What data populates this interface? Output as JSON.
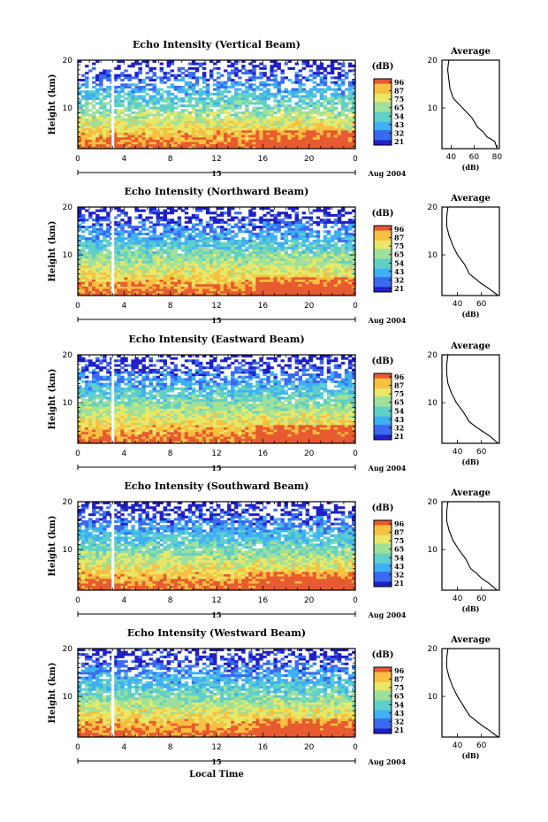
{
  "figure": {
    "xlabel": "Local Time",
    "date_label": "Aug 2004",
    "day_label": "15",
    "colorbar_unit": "(dB)",
    "colorbar_ticks": [
      "96",
      "87",
      "75",
      "65",
      "54",
      "43",
      "32",
      "21"
    ],
    "colors": [
      "#2020c8",
      "#3a6af0",
      "#3fb0f5",
      "#5fd0c8",
      "#9fe09a",
      "#e8e868",
      "#f7c040",
      "#e85a30"
    ]
  },
  "chart_data": [
    {
      "type": "heatmap",
      "title": "Echo Intensity (Vertical Beam)",
      "ylabel": "Height (km)",
      "x_ticks": [
        "0",
        "4",
        "8",
        "12",
        "16",
        "20",
        "0"
      ],
      "y_ticks": [
        "20",
        "10"
      ],
      "xlim": [
        0,
        24
      ],
      "ylim": [
        1.5,
        20
      ],
      "profile": {
        "title": "Average",
        "xlabel": "(dB)",
        "x_ticks": [
          "40",
          "60",
          "80"
        ],
        "xlim": [
          32,
          82
        ],
        "heights": [
          1.5,
          3,
          4,
          5,
          6,
          8,
          10,
          12,
          14,
          16,
          18,
          20
        ],
        "values": [
          80,
          78,
          71,
          68,
          63,
          58,
          50,
          42,
          39,
          38,
          37,
          38
        ]
      }
    },
    {
      "type": "heatmap",
      "title": "Echo Intensity (Northward Beam)",
      "ylabel": "Height (km)",
      "x_ticks": [
        "0",
        "4",
        "8",
        "12",
        "16",
        "20",
        "0"
      ],
      "y_ticks": [
        "20",
        "10"
      ],
      "xlim": [
        0,
        24
      ],
      "ylim": [
        1.5,
        20
      ],
      "profile": {
        "title": "Average",
        "xlabel": "(dB)",
        "x_ticks": [
          "40",
          "60"
        ],
        "xlim": [
          27,
          75
        ],
        "heights": [
          1.5,
          3,
          4,
          5,
          6,
          8,
          10,
          12,
          14,
          16,
          18,
          20
        ],
        "values": [
          74,
          66,
          60,
          55,
          50,
          46,
          40,
          36,
          33,
          31,
          31,
          32
        ]
      }
    },
    {
      "type": "heatmap",
      "title": "Echo Intensity (Eastward Beam)",
      "ylabel": "Height (km)",
      "x_ticks": [
        "0",
        "4",
        "8",
        "12",
        "16",
        "20",
        "0"
      ],
      "y_ticks": [
        "20",
        "10"
      ],
      "xlim": [
        0,
        24
      ],
      "ylim": [
        1.5,
        20
      ],
      "profile": {
        "title": "Average",
        "xlabel": "(dB)",
        "x_ticks": [
          "40",
          "60"
        ],
        "xlim": [
          27,
          75
        ],
        "heights": [
          1.5,
          3,
          4,
          5,
          6,
          8,
          10,
          12,
          14,
          16,
          18,
          20
        ],
        "values": [
          74,
          67,
          61,
          55,
          50,
          45,
          39,
          35,
          32,
          31,
          31,
          32
        ]
      }
    },
    {
      "type": "heatmap",
      "title": "Echo Intensity (Southward Beam)",
      "ylabel": "Height (km)",
      "x_ticks": [
        "0",
        "4",
        "8",
        "12",
        "16",
        "20",
        "0"
      ],
      "y_ticks": [
        "20",
        "10"
      ],
      "xlim": [
        0,
        24
      ],
      "ylim": [
        1.5,
        20
      ],
      "profile": {
        "title": "Average",
        "xlabel": "(dB)",
        "x_ticks": [
          "40",
          "60"
        ],
        "xlim": [
          27,
          75
        ],
        "heights": [
          1.5,
          3,
          4,
          5,
          6,
          8,
          10,
          12,
          14,
          16,
          18,
          20
        ],
        "values": [
          73,
          66,
          60,
          56,
          51,
          47,
          41,
          36,
          33,
          31,
          31,
          32
        ]
      }
    },
    {
      "type": "heatmap",
      "title": "Echo Intensity (Westward Beam)",
      "ylabel": "Height (km)",
      "x_ticks": [
        "0",
        "4",
        "8",
        "12",
        "16",
        "20",
        "0"
      ],
      "y_ticks": [
        "20",
        "10"
      ],
      "xlim": [
        0,
        24
      ],
      "ylim": [
        1.5,
        20
      ],
      "profile": {
        "title": "Average",
        "xlabel": "(dB)",
        "x_ticks": [
          "40",
          "60"
        ],
        "xlim": [
          27,
          75
        ],
        "heights": [
          1.5,
          3,
          4,
          5,
          6,
          8,
          10,
          12,
          14,
          16,
          18,
          20
        ],
        "values": [
          74,
          66,
          60,
          55,
          50,
          45,
          40,
          36,
          33,
          31,
          31,
          32
        ]
      }
    }
  ]
}
